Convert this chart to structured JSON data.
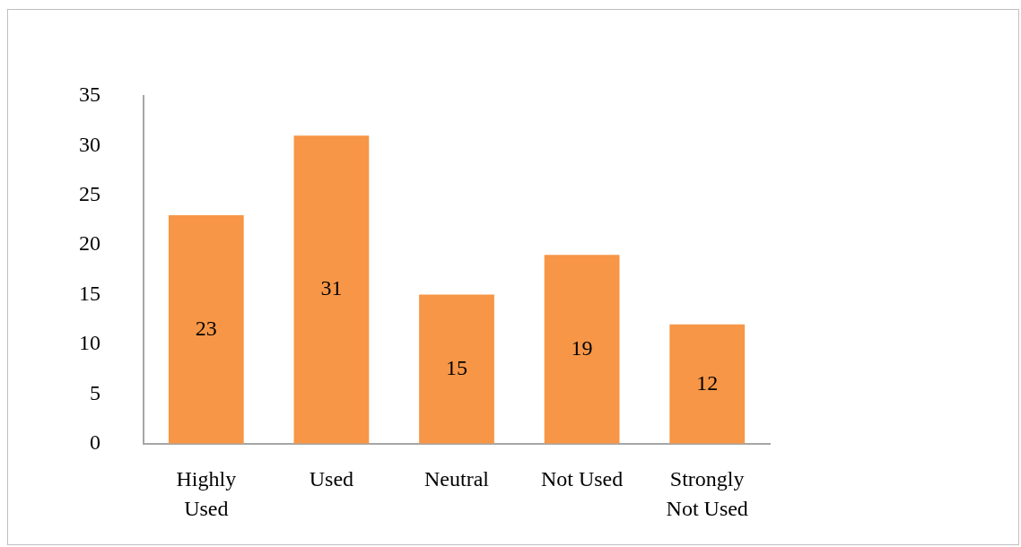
{
  "chart_data": {
    "type": "bar",
    "categories": [
      "Highly Used",
      "Used",
      "Neutral",
      "Not Used",
      "Strongly Not Used"
    ],
    "values": [
      23,
      31,
      15,
      19,
      12
    ],
    "color": "#f79646",
    "ylim": [
      0,
      35
    ],
    "yticks": [
      0,
      5,
      10,
      15,
      20,
      25,
      30,
      35
    ],
    "data_labels": true
  }
}
